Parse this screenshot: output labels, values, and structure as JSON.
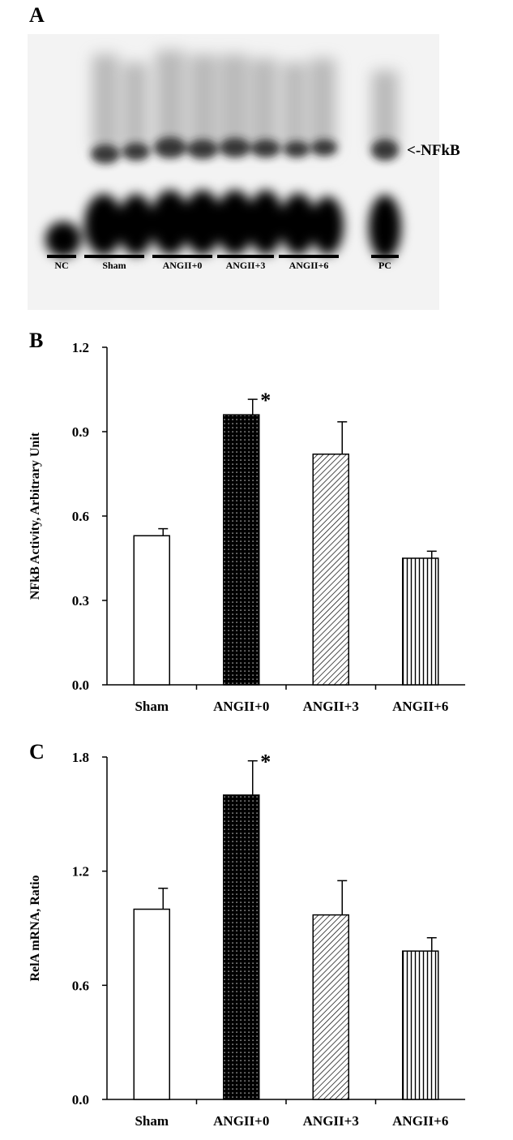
{
  "panels": {
    "a": {
      "letter": "A"
    },
    "b": {
      "letter": "B"
    },
    "c": {
      "letter": "C"
    }
  },
  "gel": {
    "lane_labels": [
      "NC",
      "Sham",
      "ANGII+0",
      "ANGII+3",
      "ANGII+6",
      "PC"
    ],
    "band_label": "<-NFkB"
  },
  "colors": {
    "ink": "#000000",
    "background": "#ffffff",
    "gel_background": "#f3f3f3"
  },
  "chart_data": [
    {
      "type": "bar",
      "panel": "B",
      "title": "",
      "xlabel": "",
      "ylabel": "NFkB Activity, Arbitrary Unit",
      "ylim": [
        0,
        1.2
      ],
      "yticks": [
        "0.0",
        "0.3",
        "0.6",
        "0.9",
        "1.2"
      ],
      "categories": [
        "Sham",
        "ANGII+0",
        "ANGII+3",
        "ANGII+6"
      ],
      "values": [
        0.53,
        0.96,
        0.82,
        0.45
      ],
      "errors": [
        0.025,
        0.055,
        0.115,
        0.025
      ],
      "patterns": [
        "open",
        "dotted",
        "diagonal-hatch",
        "vertical-stripes"
      ],
      "significance": [
        "",
        "*",
        "",
        ""
      ],
      "grid": false,
      "legend": "none"
    },
    {
      "type": "bar",
      "panel": "C",
      "title": "",
      "xlabel": "",
      "ylabel": "RelA mRNA, Ratio",
      "ylim": [
        0,
        1.8
      ],
      "yticks": [
        "0.0",
        "0.6",
        "1.2",
        "1.8"
      ],
      "categories": [
        "Sham",
        "ANGII+0",
        "ANGII+3",
        "ANGII+6"
      ],
      "values": [
        1.0,
        1.6,
        0.97,
        0.78
      ],
      "errors": [
        0.11,
        0.18,
        0.18,
        0.07
      ],
      "patterns": [
        "open",
        "dotted",
        "diagonal-hatch",
        "vertical-stripes"
      ],
      "significance": [
        "",
        "*",
        "",
        ""
      ],
      "grid": false,
      "legend": "none"
    }
  ]
}
